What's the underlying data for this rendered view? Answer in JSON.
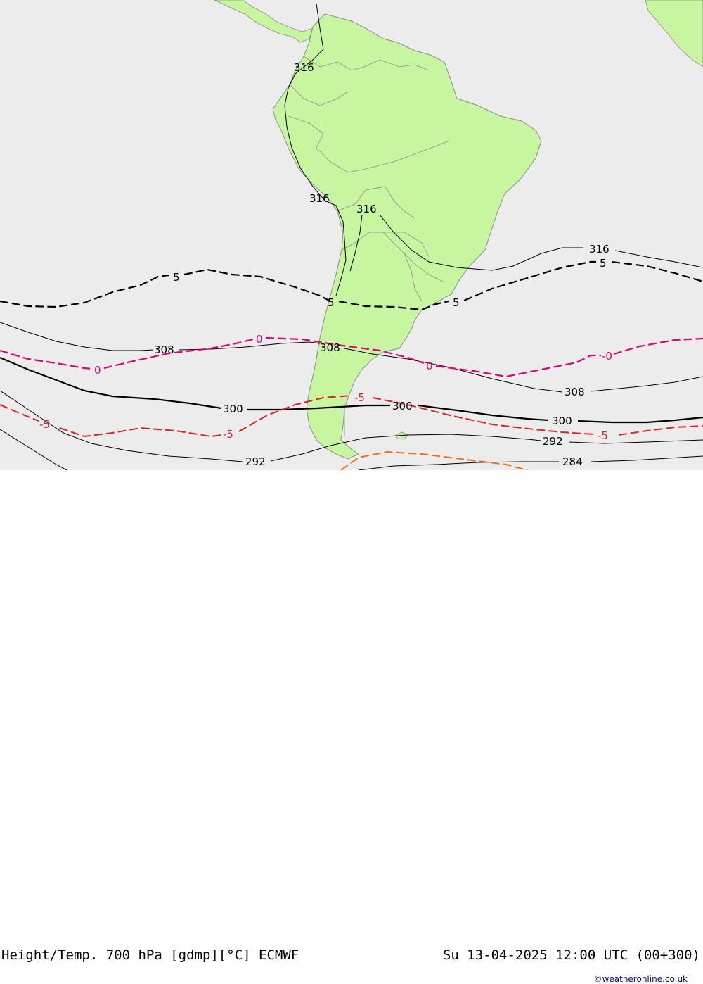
{
  "title": "Height/Temp. 700 hPa [gdmp][°C] ECMWF",
  "valid_time": "Su 13-04-2025 12:00 UTC (00+300)",
  "credit": "©weatheronline.co.uk",
  "colors": {
    "ocean": "#ececec",
    "land": "#c8f5a0",
    "border": "#8c8c8c",
    "height_contour": "#000000",
    "temp_plus5": "#000000",
    "temp_zero": "#e0007a",
    "temp_minus5": "#e02020",
    "temp_minus10": "#f07010"
  },
  "height_labels": [
    "316",
    "316",
    "316",
    "316",
    "308",
    "308",
    "308",
    "300",
    "300",
    "300",
    "292",
    "292",
    "284"
  ],
  "temp_labels": [
    "5",
    "5",
    "5",
    "5",
    "0",
    "0",
    "0",
    "-0",
    "-5",
    "-5",
    "-5",
    "-5"
  ]
}
